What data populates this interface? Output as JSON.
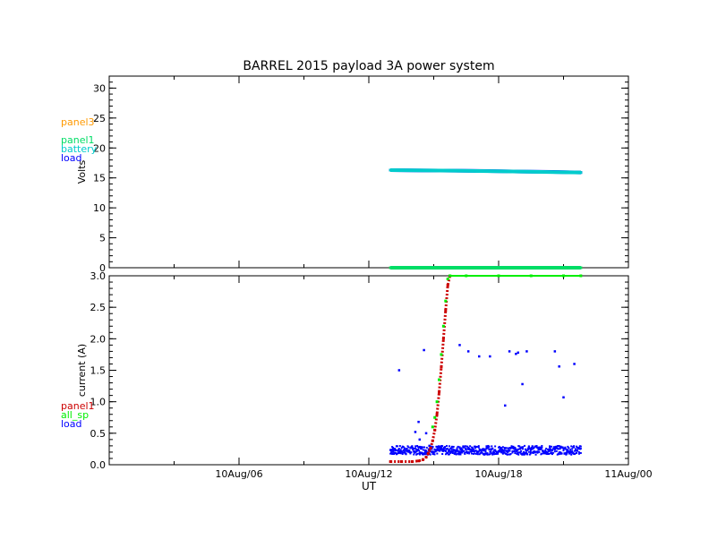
{
  "colors": {
    "panel3": "#ff9900",
    "panel1_top": "#00dd66",
    "battery": "#00cccc",
    "load": "#0000ff",
    "panel1_bottom": "#cc0000",
    "all_sp": "#00ee00",
    "axis": "#000000"
  },
  "chart_data": {
    "title": "BARREL 2015 payload 3A power system",
    "xlabel": "UT",
    "x_tick_labels": [
      "10Aug/06",
      "10Aug/12",
      "10Aug/18",
      "11Aug/00"
    ],
    "x_range_hours": [
      0,
      24
    ],
    "x_tick_hours": [
      6,
      12,
      18,
      24
    ],
    "panels": [
      {
        "type": "line",
        "ylabel": "Volts",
        "ylim": [
          0,
          32
        ],
        "ytick_labels": [
          "0",
          "5",
          "10",
          "15",
          "20",
          "25",
          "30"
        ],
        "yticks": [
          0,
          5,
          10,
          15,
          20,
          25,
          30
        ],
        "legend_placement": "left",
        "legend": [
          "panel3",
          "panel1",
          "battery",
          "load"
        ],
        "series": [
          {
            "name": "load",
            "x": [
              13.0,
              14.5,
              16.0,
              17.5,
              19.0,
              20.5,
              21.8
            ],
            "y": [
              16.3,
              16.25,
              16.2,
              16.15,
              16.05,
              16.0,
              15.9
            ]
          },
          {
            "name": "battery",
            "x": [
              13.0,
              16.0,
              19.0,
              21.8
            ],
            "y": [
              16.3,
              16.2,
              16.05,
              15.9
            ]
          },
          {
            "name": "panel3",
            "x": [
              13.0,
              21.8
            ],
            "y": [
              0.0,
              0.0
            ]
          },
          {
            "name": "panel1",
            "x": [
              13.0,
              21.8
            ],
            "y": [
              0.0,
              0.0
            ]
          }
        ]
      },
      {
        "type": "scatter",
        "ylabel": "current (A)",
        "ylim": [
          0,
          3.0
        ],
        "ytick_labels": [
          "0.0",
          "0.5",
          "1.0",
          "1.5",
          "2.0",
          "2.5",
          "3.0"
        ],
        "yticks": [
          0,
          0.5,
          1.0,
          1.5,
          2.0,
          2.5,
          3.0
        ],
        "legend_placement": "left",
        "legend": [
          "panel1",
          "all_sp",
          "load"
        ],
        "series": [
          {
            "name": "panel1",
            "x": [
              13.0,
              13.5,
              14.0,
              14.3,
              14.5,
              14.65,
              14.75,
              14.85,
              14.95,
              15.05,
              15.15,
              15.25,
              15.35,
              15.45,
              15.55,
              15.65,
              15.75
            ],
            "y": [
              0.05,
              0.05,
              0.05,
              0.06,
              0.08,
              0.12,
              0.18,
              0.26,
              0.38,
              0.55,
              0.8,
              1.15,
              1.55,
              2.0,
              2.45,
              2.85,
              3.0
            ]
          },
          {
            "name": "all_sp",
            "x": [
              14.95,
              15.05,
              15.15,
              15.25,
              15.35,
              15.45,
              15.55,
              15.65,
              15.75,
              16.5,
              18.0,
              19.5,
              21.0,
              21.8
            ],
            "y": [
              0.6,
              0.75,
              1.0,
              1.35,
              1.75,
              2.2,
              2.6,
              2.95,
              3.0,
              3.0,
              3.0,
              3.0,
              3.0,
              3.0
            ]
          },
          {
            "name": "load",
            "x": [
              13.4,
              14.15,
              14.3,
              14.35,
              14.55,
              14.65,
              14.8,
              16.2,
              16.6,
              17.1,
              17.6,
              18.3,
              18.5,
              18.8,
              18.9,
              19.1,
              19.3,
              20.6,
              20.8,
              21.0,
              21.5
            ],
            "y": [
              1.5,
              0.52,
              0.68,
              0.4,
              1.82,
              0.5,
              0.3,
              1.9,
              1.8,
              1.72,
              1.72,
              0.94,
              1.8,
              1.76,
              1.78,
              1.28,
              1.8,
              1.8,
              1.56,
              1.07,
              1.6
            ]
          }
        ],
        "load_baseline_band": {
          "x_start": 13.0,
          "x_end": 21.8,
          "y_low": 0.16,
          "y_high": 0.3
        }
      }
    ]
  }
}
